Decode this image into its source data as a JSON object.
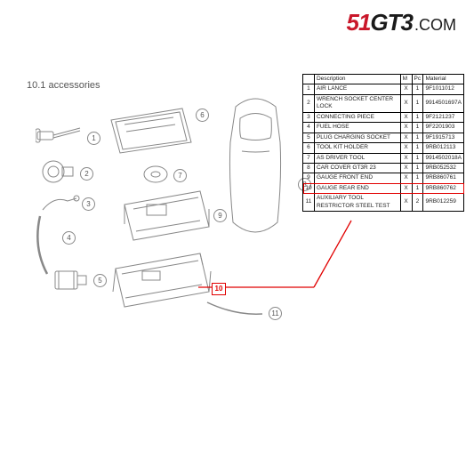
{
  "brand": {
    "p1": "51",
    "p2": "GT3",
    "p3": ".COM"
  },
  "section_title": "10.1  accessories",
  "leader": {
    "color": "#e10000"
  },
  "highlight_tag": "10",
  "labels": [
    "1",
    "2",
    "3",
    "4",
    "5",
    "6",
    "7",
    "8",
    "9",
    "10",
    "11"
  ],
  "table": {
    "columns": [
      "",
      "Description",
      "M",
      "Pc",
      "Material"
    ],
    "rows": [
      {
        "n": "1",
        "desc": "AIR LANCE",
        "m": "X",
        "pc": "1",
        "mat": "9F1011012"
      },
      {
        "n": "2",
        "desc": "WRENCH SOCKET CENTER LOCK",
        "m": "X",
        "pc": "1",
        "mat": "9914501697A"
      },
      {
        "n": "3",
        "desc": "CONNECTING PIECE",
        "m": "X",
        "pc": "1",
        "mat": "9F2121237"
      },
      {
        "n": "4",
        "desc": "FUEL HOSE",
        "m": "X",
        "pc": "1",
        "mat": "9F2201903"
      },
      {
        "n": "5",
        "desc": "PLUG CHARGING SOCKET",
        "m": "X",
        "pc": "1",
        "mat": "9F1915713"
      },
      {
        "n": "6",
        "desc": "TOOL KIT HOLDER",
        "m": "X",
        "pc": "1",
        "mat": "9RB012113"
      },
      {
        "n": "7",
        "desc": "AS DRIVER TOOL",
        "m": "X",
        "pc": "1",
        "mat": "9914502018A"
      },
      {
        "n": "8",
        "desc": "CAR COVER GT3R 23",
        "m": "X",
        "pc": "1",
        "mat": "9RB052532"
      },
      {
        "n": "9",
        "desc": "GAUGE FRONT END",
        "m": "X",
        "pc": "1",
        "mat": "9RB860761"
      },
      {
        "n": "10",
        "desc": "GAUGE REAR END",
        "m": "X",
        "pc": "1",
        "mat": "9RB860762",
        "highlight": true
      },
      {
        "n": "11",
        "desc": "AUXILIARY TOOL RESTRICTOR STEEL TEST",
        "m": "X",
        "pc": "2",
        "mat": "9RB012259"
      }
    ]
  }
}
